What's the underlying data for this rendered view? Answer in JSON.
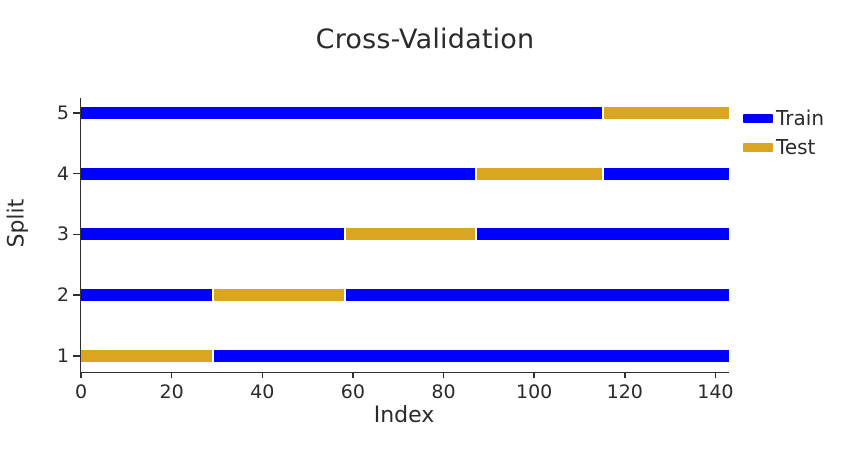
{
  "title": "Cross-Validation",
  "legend": {
    "items": [
      {
        "label": "Train",
        "color": "#0000FF"
      },
      {
        "label": "Test",
        "color": "#DAA520"
      }
    ]
  },
  "chart_data": {
    "type": "bar",
    "orientation": "horizontal",
    "title": "Cross-Validation",
    "xlabel": "Index",
    "ylabel": "Split",
    "xlim": [
      0,
      143
    ],
    "x_ticks": [
      0,
      20,
      40,
      60,
      80,
      100,
      120,
      140
    ],
    "y_categories": [
      1,
      2,
      3,
      4,
      5
    ],
    "n_samples": 143,
    "n_splits": 5,
    "grid": false,
    "legend_position": "outside-top-right",
    "colors": {
      "train": "#0000FF",
      "test": "#DAA520"
    },
    "series": [
      {
        "name": "Train",
        "color": "#0000FF"
      },
      {
        "name": "Test",
        "color": "#DAA520"
      }
    ],
    "splits": [
      {
        "split": 1,
        "test_start": 0,
        "test_end": 29
      },
      {
        "split": 2,
        "test_start": 29,
        "test_end": 58
      },
      {
        "split": 3,
        "test_start": 58,
        "test_end": 87
      },
      {
        "split": 4,
        "test_start": 87,
        "test_end": 115
      },
      {
        "split": 5,
        "test_start": 115,
        "test_end": 143
      }
    ]
  }
}
